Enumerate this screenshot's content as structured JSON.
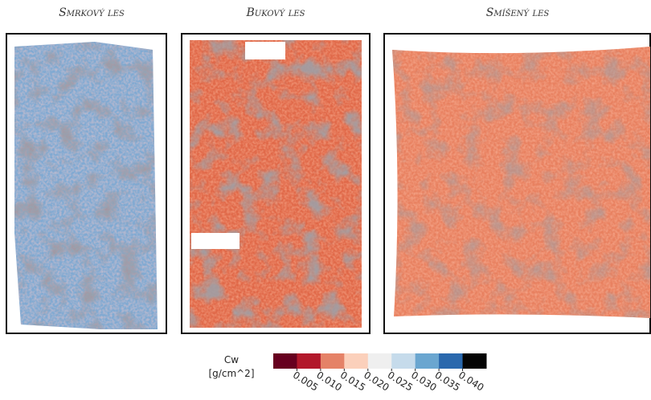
{
  "panels": [
    {
      "title": "Smrkový les"
    },
    {
      "title": "Bukový les"
    },
    {
      "title": "Smíšený les"
    }
  ],
  "colorbar": {
    "label_lines": [
      "Cw",
      "[g/cm^2]"
    ],
    "colors": [
      "#67001f",
      "#b2182b",
      "#e58267",
      "#fbd0bb",
      "#efefef",
      "#c6dbeb",
      "#6aa6d0",
      "#2a68ad",
      "#050505"
    ],
    "lim": [
      0,
      0.045
    ],
    "ticks": [
      0.005,
      {
        "value": 0.01,
        "label": "0.010"
      },
      0.015,
      {
        "value": 0.02,
        "label": "0.020"
      },
      0.025,
      {
        "value": 0.03,
        "label": "0.030"
      },
      0.035,
      {
        "value": 0.04,
        "label": "0.040"
      }
    ]
  }
}
